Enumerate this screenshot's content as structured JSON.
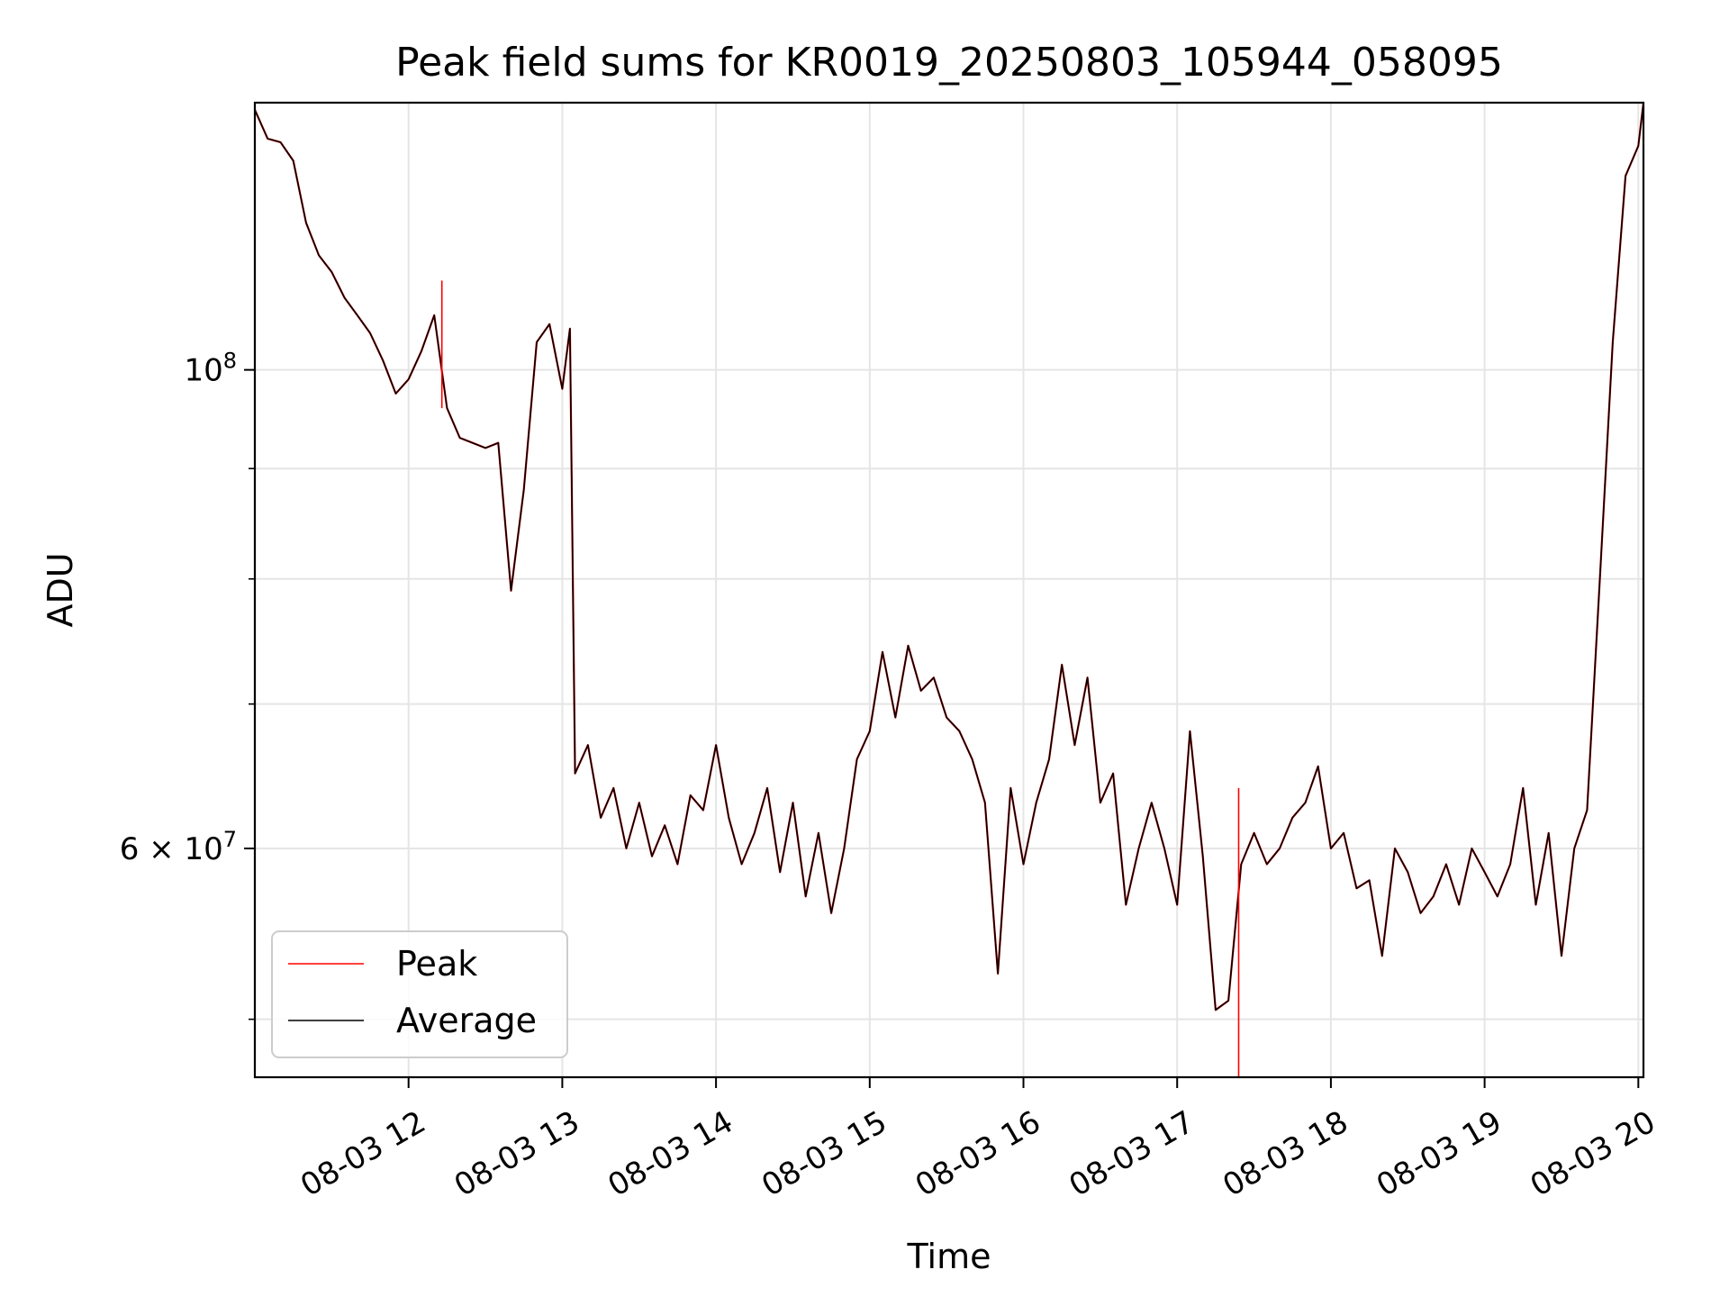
{
  "chart_data": {
    "type": "line",
    "title": "Peak field sums for KR0019_20250803_105944_058095",
    "xlabel": "Time",
    "ylabel": "ADU",
    "yscale": "log",
    "grid": true,
    "legend_position": "lower-left",
    "x_range": [
      "08-03 11:00",
      "08-03 20:02"
    ],
    "ylim": [
      47000000,
      133000000
    ],
    "x_ticks": [
      "08-03 12",
      "08-03 13",
      "08-03 14",
      "08-03 15",
      "08-03 16",
      "08-03 17",
      "08-03 18",
      "08-03 19",
      "08-03 20"
    ],
    "y_ticks": [
      {
        "value": 100000000,
        "base": "10",
        "exp": "8"
      },
      {
        "value": 60000000,
        "mantissa": "6",
        "base": "10",
        "exp": "7"
      }
    ],
    "y_minor_ticks": [
      50000000,
      70000000,
      80000000,
      90000000
    ],
    "x": [
      "11:00",
      "11:05",
      "11:10",
      "11:15",
      "11:20",
      "11:25",
      "11:30",
      "11:35",
      "11:40",
      "11:45",
      "11:50",
      "11:55",
      "12:00",
      "12:05",
      "12:10",
      "12:15",
      "12:20",
      "12:25",
      "12:30",
      "12:35",
      "12:40",
      "12:45",
      "12:50",
      "12:55",
      "13:00",
      "13:03",
      "13:05",
      "13:10",
      "13:15",
      "13:20",
      "13:25",
      "13:30",
      "13:35",
      "13:40",
      "13:45",
      "13:50",
      "13:55",
      "14:00",
      "14:05",
      "14:10",
      "14:15",
      "14:20",
      "14:25",
      "14:30",
      "14:35",
      "14:40",
      "14:45",
      "14:50",
      "14:55",
      "15:00",
      "15:05",
      "15:10",
      "15:15",
      "15:20",
      "15:25",
      "15:30",
      "15:35",
      "15:40",
      "15:45",
      "15:50",
      "15:55",
      "16:00",
      "16:05",
      "16:10",
      "16:15",
      "16:20",
      "16:25",
      "16:30",
      "16:35",
      "16:40",
      "16:45",
      "16:50",
      "16:55",
      "17:00",
      "17:05",
      "17:10",
      "17:15",
      "17:20",
      "17:25",
      "17:30",
      "17:35",
      "17:40",
      "17:45",
      "17:50",
      "17:55",
      "18:00",
      "18:05",
      "18:10",
      "18:15",
      "18:20",
      "18:25",
      "18:30",
      "18:35",
      "18:40",
      "18:45",
      "18:50",
      "18:55",
      "19:00",
      "19:05",
      "19:10",
      "19:15",
      "19:20",
      "19:25",
      "19:30",
      "19:35",
      "19:40",
      "19:45",
      "19:50",
      "19:55",
      "20:00",
      "20:02"
    ],
    "series": [
      {
        "name": "Peak",
        "color": "#ff0000",
        "values": [
          132000000,
          128000000,
          127500000,
          125000000,
          117000000,
          113000000,
          111000000,
          108000000,
          106000000,
          104000000,
          101000000,
          97500000,
          99000000,
          102000000,
          106000000,
          96000000,
          93000000,
          92500000,
          92000000,
          92500000,
          79000000,
          88000000,
          103000000,
          105000000,
          98000000,
          104500000,
          65000000,
          67000000,
          62000000,
          64000000,
          60000000,
          63000000,
          59500000,
          61500000,
          59000000,
          63500000,
          62500000,
          67000000,
          62000000,
          59000000,
          61000000,
          64000000,
          58500000,
          63000000,
          57000000,
          61000000,
          56000000,
          60000000,
          66000000,
          68000000,
          74000000,
          69000000,
          74500000,
          71000000,
          72000000,
          69000000,
          68000000,
          66000000,
          63000000,
          52500000,
          64000000,
          59000000,
          63000000,
          66000000,
          73000000,
          67000000,
          72000000,
          63000000,
          65000000,
          56500000,
          60000000,
          63000000,
          60000000,
          56500000,
          68000000,
          59500000,
          50500000,
          51000000,
          59000000,
          61000000,
          59000000,
          60000000,
          62000000,
          63000000,
          65500000,
          60000000,
          61000000,
          57500000,
          58000000,
          53500000,
          60000000,
          58500000,
          56000000,
          57000000,
          59000000,
          56500000,
          60000000,
          58500000,
          57000000,
          59000000,
          64000000,
          56500000,
          61000000,
          53500000,
          60000000,
          62500000,
          80000000,
          103000000,
          123000000,
          127000000,
          133000000
        ]
      },
      {
        "name": "Average",
        "color": "#000000",
        "values": [
          132000000,
          128000000,
          127500000,
          125000000,
          117000000,
          113000000,
          111000000,
          108000000,
          106000000,
          104000000,
          101000000,
          97500000,
          99000000,
          102000000,
          106000000,
          96000000,
          93000000,
          92500000,
          92000000,
          92500000,
          79000000,
          88000000,
          103000000,
          105000000,
          98000000,
          104500000,
          65000000,
          67000000,
          62000000,
          64000000,
          60000000,
          63000000,
          59500000,
          61500000,
          59000000,
          63500000,
          62500000,
          67000000,
          62000000,
          59000000,
          61000000,
          64000000,
          58500000,
          63000000,
          57000000,
          61000000,
          56000000,
          60000000,
          66000000,
          68000000,
          74000000,
          69000000,
          74500000,
          71000000,
          72000000,
          69000000,
          68000000,
          66000000,
          63000000,
          52500000,
          64000000,
          59000000,
          63000000,
          66000000,
          73000000,
          67000000,
          72000000,
          63000000,
          65000000,
          56500000,
          60000000,
          63000000,
          60000000,
          56500000,
          68000000,
          59500000,
          50500000,
          51000000,
          59000000,
          61000000,
          59000000,
          60000000,
          62000000,
          63000000,
          65500000,
          60000000,
          61000000,
          57500000,
          58000000,
          53500000,
          60000000,
          58500000,
          56000000,
          57000000,
          59000000,
          56500000,
          60000000,
          58500000,
          57000000,
          59000000,
          64000000,
          56500000,
          61000000,
          53500000,
          60000000,
          62500000,
          80000000,
          103000000,
          123000000,
          127000000,
          133000000
        ]
      }
    ],
    "annotations": [
      {
        "series": "Peak",
        "x": "12:13",
        "value": 110000000,
        "kind": "spike"
      },
      {
        "series": "Peak",
        "x": "17:24",
        "value": 64000000,
        "kind": "spike"
      },
      {
        "series": "Peak",
        "x": "17:24",
        "value": 47000000,
        "kind": "dip"
      }
    ]
  }
}
